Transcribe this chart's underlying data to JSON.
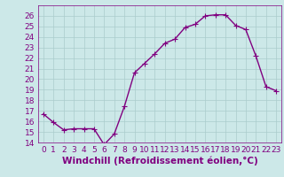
{
  "x": [
    0,
    1,
    2,
    3,
    4,
    5,
    6,
    7,
    8,
    9,
    10,
    11,
    12,
    13,
    14,
    15,
    16,
    17,
    18,
    19,
    20,
    21,
    22,
    23
  ],
  "y": [
    16.7,
    15.9,
    15.2,
    15.3,
    15.3,
    15.3,
    13.8,
    14.8,
    17.4,
    20.6,
    21.5,
    22.4,
    23.4,
    23.8,
    24.9,
    25.2,
    26.0,
    26.1,
    26.1,
    25.1,
    24.7,
    22.2,
    19.3,
    18.9
  ],
  "line_color": "#800080",
  "marker": "+",
  "marker_size": 4,
  "bg_color": "#cce8e8",
  "grid_color": "#aacccc",
  "xlabel": "Windchill (Refroidissement éolien,°C)",
  "ylim": [
    14,
    27
  ],
  "xlim": [
    -0.5,
    23.5
  ],
  "yticks": [
    14,
    15,
    16,
    17,
    18,
    19,
    20,
    21,
    22,
    23,
    24,
    25,
    26
  ],
  "xticks": [
    0,
    1,
    2,
    3,
    4,
    5,
    6,
    7,
    8,
    9,
    10,
    11,
    12,
    13,
    14,
    15,
    16,
    17,
    18,
    19,
    20,
    21,
    22,
    23
  ],
  "tick_fontsize": 6.5,
  "xlabel_fontsize": 7.5,
  "line_width": 1.0
}
